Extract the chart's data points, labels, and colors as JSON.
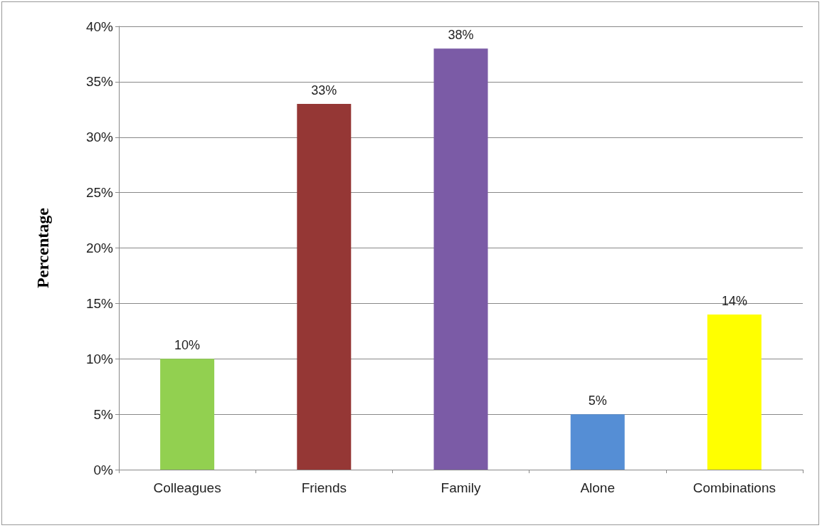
{
  "chart_data": {
    "type": "bar",
    "ylabel": "Percentage",
    "categories": [
      "Colleagues",
      "Friends",
      "Family",
      "Alone",
      "Combinations"
    ],
    "values": [
      10,
      33,
      38,
      5,
      14
    ],
    "colors": [
      "#92d050",
      "#953735",
      "#7b5ba6",
      "#558ed5",
      "#ffff00"
    ],
    "value_labels": [
      "10%",
      "33%",
      "38%",
      "5%",
      "14%"
    ],
    "ylim": [
      0,
      40
    ],
    "yticks": [
      {
        "value": 0,
        "label": "0%"
      },
      {
        "value": 5,
        "label": "5%"
      },
      {
        "value": 10,
        "label": "10%"
      },
      {
        "value": 15,
        "label": "15%"
      },
      {
        "value": 20,
        "label": "20%"
      },
      {
        "value": 25,
        "label": "25%"
      },
      {
        "value": 30,
        "label": "30%"
      },
      {
        "value": 35,
        "label": "35%"
      },
      {
        "value": 40,
        "label": "40%"
      }
    ],
    "grid": "y"
  }
}
